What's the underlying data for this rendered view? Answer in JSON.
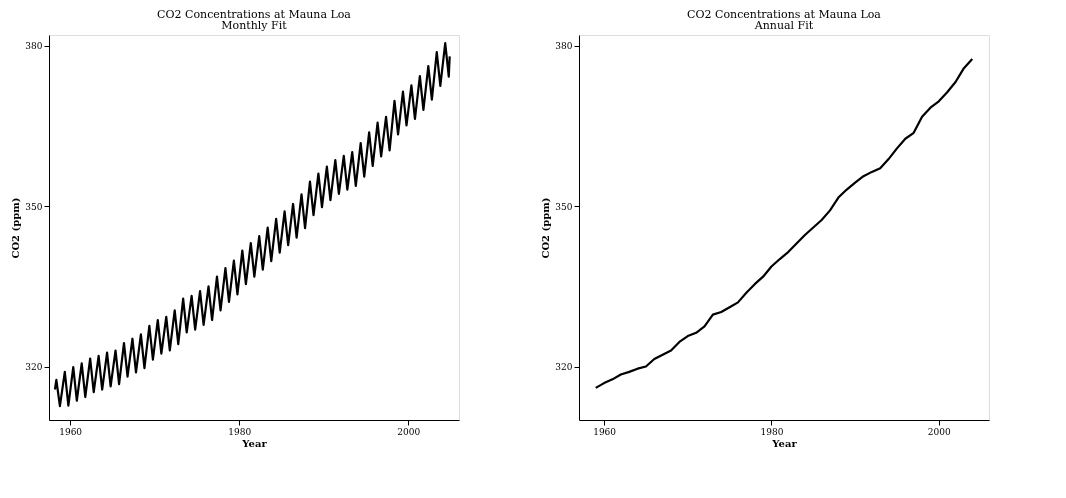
{
  "chart_data": [
    {
      "type": "line",
      "title": "CO2 Concentrations at Mauna Loa",
      "subtitle": "Monthly Fit",
      "xlabel": "Year",
      "ylabel": "CO2 (ppm)",
      "x": [
        1958.2,
        1958.37,
        1958.79,
        1959.37,
        1959.79,
        1960.37,
        1960.79,
        1961.37,
        1961.79,
        1962.37,
        1962.79,
        1963.37,
        1963.79,
        1964.37,
        1964.79,
        1965.37,
        1965.79,
        1966.37,
        1966.79,
        1967.37,
        1967.79,
        1968.37,
        1968.79,
        1969.37,
        1969.79,
        1970.37,
        1970.79,
        1971.37,
        1971.79,
        1972.37,
        1972.79,
        1973.37,
        1973.79,
        1974.37,
        1974.79,
        1975.37,
        1975.79,
        1976.37,
        1976.79,
        1977.37,
        1977.79,
        1978.37,
        1978.79,
        1979.37,
        1979.79,
        1980.37,
        1980.79,
        1981.37,
        1981.79,
        1982.37,
        1982.79,
        1983.37,
        1983.79,
        1984.37,
        1984.79,
        1985.37,
        1985.79,
        1986.37,
        1986.79,
        1987.37,
        1987.79,
        1988.37,
        1988.79,
        1989.37,
        1989.79,
        1990.37,
        1990.79,
        1991.37,
        1991.79,
        1992.37,
        1992.79,
        1993.37,
        1993.79,
        1994.37,
        1994.79,
        1995.37,
        1995.79,
        1996.37,
        1996.79,
        1997.37,
        1997.79,
        1998.37,
        1998.79,
        1999.37,
        1999.79,
        2000.37,
        2000.79,
        2001.37,
        2001.79,
        2002.37,
        2002.79,
        2003.37,
        2003.79,
        2004.37,
        2004.79,
        2004.9
      ],
      "series": [
        {
          "color": "#000000",
          "values": [
            315.7,
            317.5,
            312.6,
            319.0,
            312.7,
            319.9,
            313.6,
            320.6,
            314.3,
            321.5,
            315.2,
            322.0,
            315.7,
            322.6,
            316.3,
            323.0,
            316.7,
            324.4,
            318.1,
            325.2,
            318.9,
            326.0,
            319.7,
            327.6,
            321.3,
            328.7,
            322.4,
            329.3,
            323.0,
            330.5,
            324.2,
            332.7,
            326.4,
            333.2,
            326.9,
            334.1,
            327.8,
            335.0,
            328.7,
            336.8,
            330.5,
            338.4,
            332.1,
            339.8,
            333.5,
            341.7,
            335.4,
            343.1,
            336.8,
            344.4,
            338.1,
            346.0,
            339.7,
            347.6,
            341.3,
            349.0,
            342.7,
            350.4,
            344.1,
            352.2,
            345.9,
            354.6,
            348.3,
            356.1,
            349.8,
            357.4,
            351.1,
            358.6,
            352.3,
            359.4,
            353.1,
            360.1,
            353.8,
            361.8,
            355.5,
            363.8,
            357.5,
            365.6,
            359.3,
            366.7,
            360.4,
            369.7,
            363.4,
            371.4,
            365.1,
            372.6,
            366.3,
            374.3,
            368.0,
            376.2,
            369.9,
            378.8,
            372.5,
            380.5,
            374.2,
            378.0
          ]
        }
      ],
      "xlim": [
        1957.5,
        2006
      ],
      "ylim": [
        310,
        382
      ],
      "xticks": [
        1960,
        1980,
        2000
      ],
      "yticks": [
        320,
        350,
        380
      ]
    },
    {
      "type": "line",
      "title": "CO2 Concentrations at Mauna Loa",
      "subtitle": "Annual Fit",
      "xlabel": "Year",
      "ylabel": "CO2 (ppm)",
      "x": [
        1959,
        1960,
        1961,
        1962,
        1963,
        1964,
        1965,
        1966,
        1967,
        1968,
        1969,
        1970,
        1971,
        1972,
        1973,
        1974,
        1975,
        1976,
        1977,
        1978,
        1979,
        1980,
        1981,
        1982,
        1983,
        1984,
        1985,
        1986,
        1987,
        1988,
        1989,
        1990,
        1991,
        1992,
        1993,
        1994,
        1995,
        1996,
        1997,
        1998,
        1999,
        2000,
        2001,
        2002,
        2003,
        2004
      ],
      "series": [
        {
          "color": "#000000",
          "values": [
            316.0,
            316.9,
            317.6,
            318.5,
            319.0,
            319.6,
            320.0,
            321.4,
            322.2,
            323.0,
            324.6,
            325.7,
            326.3,
            327.5,
            329.7,
            330.2,
            331.1,
            332.0,
            333.8,
            335.4,
            336.8,
            338.7,
            340.1,
            341.4,
            343.0,
            344.6,
            346.0,
            347.4,
            349.2,
            351.6,
            353.1,
            354.4,
            355.6,
            356.4,
            357.1,
            358.8,
            360.8,
            362.6,
            363.7,
            366.7,
            368.4,
            369.6,
            371.3,
            373.2,
            375.8,
            377.5
          ]
        }
      ],
      "xlim": [
        1957,
        2006
      ],
      "ylim": [
        310,
        382
      ],
      "xticks": [
        1960,
        1980,
        2000
      ],
      "yticks": [
        320,
        350,
        380
      ]
    }
  ]
}
